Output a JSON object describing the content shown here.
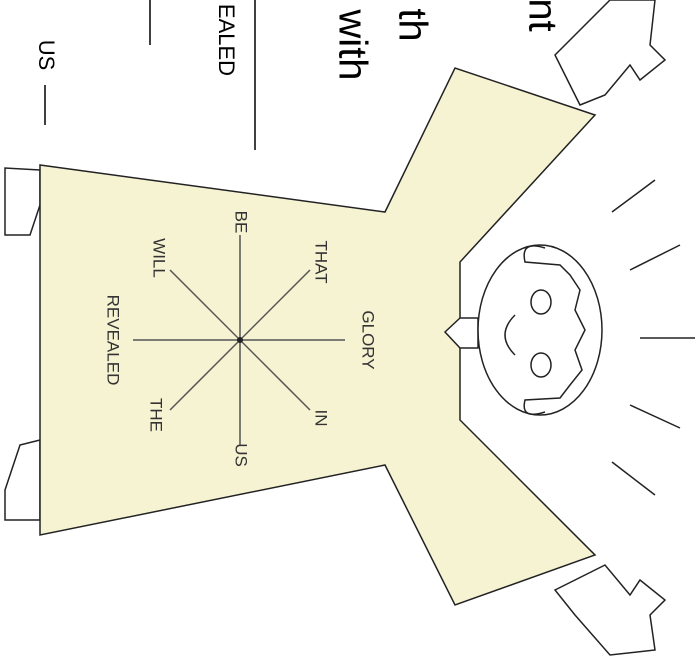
{
  "worksheet_fragment": [
    "nt",
    "th",
    "with",
    "EALED",
    "US"
  ],
  "star_words": [
    "GLORY",
    "THAT",
    "BE",
    "WILL",
    "REVEALED",
    "THE",
    "US",
    "IN"
  ]
}
